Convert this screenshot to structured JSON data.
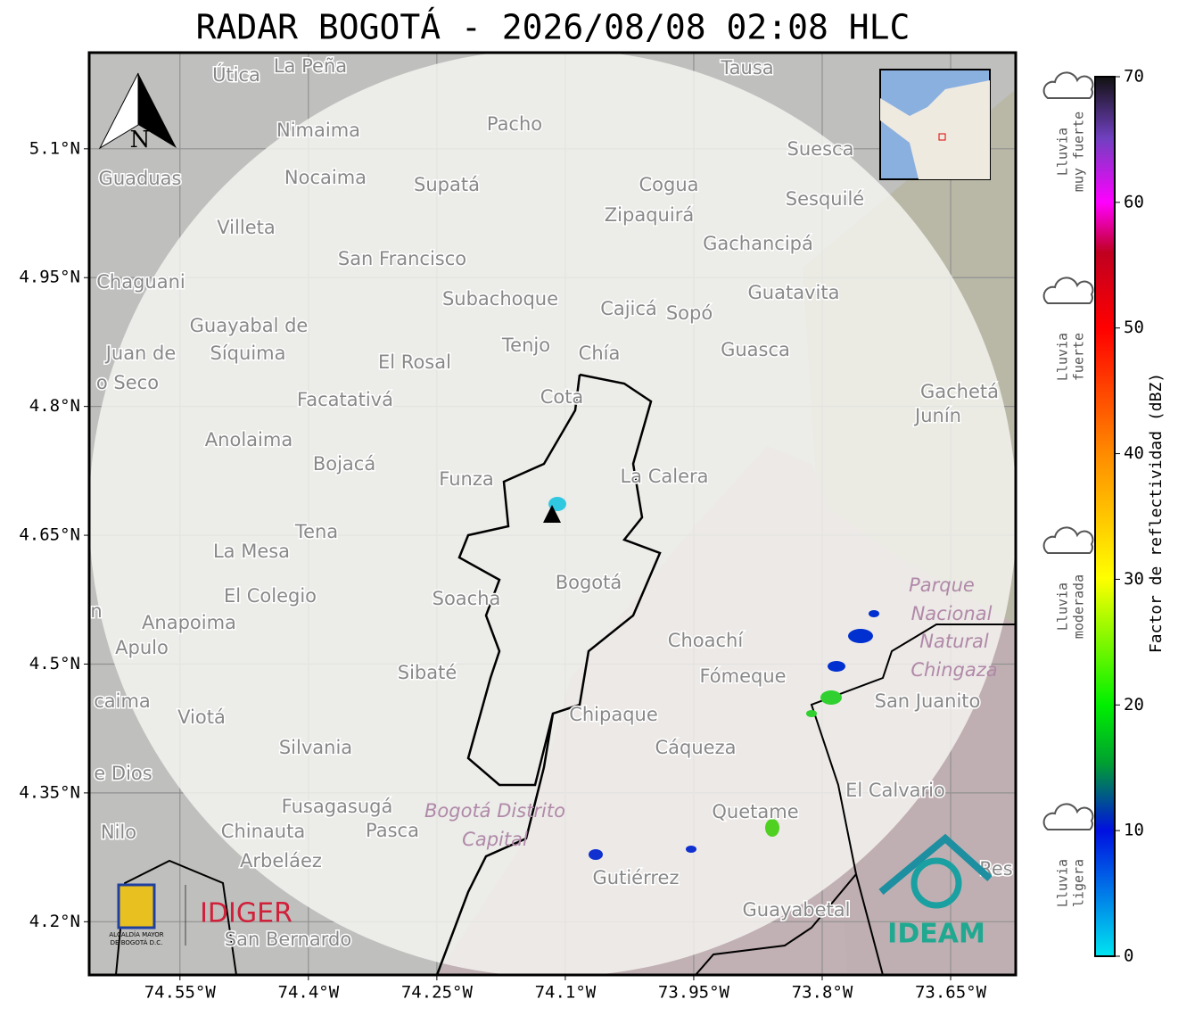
{
  "title": "RADAR BOGOTÁ - 2026/08/08 02:08 HLC",
  "map": {
    "xlim": [
      -74.656,
      -73.574
    ],
    "ylim": [
      4.138,
      5.212
    ],
    "xticks": [
      {
        "value": -74.55,
        "label": "74.55°W"
      },
      {
        "value": -74.4,
        "label": "74.4°W"
      },
      {
        "value": -74.25,
        "label": "74.25°W"
      },
      {
        "value": -74.1,
        "label": "74.1°W"
      },
      {
        "value": -73.95,
        "label": "73.95°W"
      },
      {
        "value": -73.8,
        "label": "73.8°W"
      },
      {
        "value": -73.65,
        "label": "73.65°W"
      }
    ],
    "yticks": [
      {
        "value": 5.1,
        "label": "5.1°N"
      },
      {
        "value": 4.95,
        "label": "4.95°N"
      },
      {
        "value": 4.8,
        "label": "4.8°N"
      },
      {
        "value": 4.65,
        "label": "4.65°N"
      },
      {
        "value": 4.5,
        "label": "4.5°N"
      },
      {
        "value": 4.35,
        "label": "4.35°N"
      },
      {
        "value": 4.2,
        "label": "4.2°N"
      }
    ],
    "grid": true,
    "north_label": "N",
    "places": [
      "La Peña",
      "Útica",
      "Tausa",
      "Pacho",
      "Nimaima",
      "Guaduas",
      "Nocaima",
      "Supatá",
      "Cogua",
      "Suesca",
      "Sesquilé",
      "Zipaquirá",
      "Villeta",
      "Gachancipá",
      "San Francisco",
      "Chaguani",
      "Guatavita",
      "Subachoque",
      "Cajicá",
      "Sopó",
      "Guayabal de",
      "Síquima",
      "Juan de",
      "Tenjo",
      "Chía",
      "Guasca",
      "El Rosal",
      "o Seco",
      "Facatativá",
      "Cota",
      "Gachetá",
      "Junín",
      "Anolaima",
      "Bojacá",
      "Funza",
      "La Calera",
      "Tena",
      "La Mesa",
      "Bogotá",
      "El Colegio",
      "Soacha",
      "Anapoima",
      "Apulo",
      "Choachí",
      "Fómeque",
      "Sibaté",
      "San Juanito",
      "caima",
      "Viotá",
      "Chipaque",
      "Cáqueza",
      "Silvania",
      "e Dios",
      "El Calvario",
      "Fusagasugá",
      "Quetame",
      "Nilo",
      "Chinauta",
      "Pasca",
      "Arbeláez",
      "Gutiérrez",
      "Guayabetal",
      "San Bernardo",
      "Res",
      "n"
    ],
    "areas": [
      "Parque",
      "Nacional",
      "Natural",
      "Chingaza",
      "Bogotá Distrito",
      "Capital"
    ]
  },
  "colorbar": {
    "label": "Factor de reflectividad (dBZ)",
    "lim": [
      0,
      70
    ],
    "ticks": [
      0,
      10,
      20,
      30,
      40,
      50,
      60,
      70
    ],
    "categories": [
      [
        "Lluvia",
        "muy fuerte"
      ],
      [
        "Lluvia",
        "fuerte"
      ],
      [
        "Lluvia",
        "moderada"
      ],
      [
        "Lluvia",
        "ligera"
      ]
    ]
  },
  "logos": {
    "alcaldia": [
      "ALCALDÍA MAYOR",
      "DE BOGOTÁ D.C."
    ],
    "idiger": "IDIGER",
    "ideam": "IDEAM"
  }
}
